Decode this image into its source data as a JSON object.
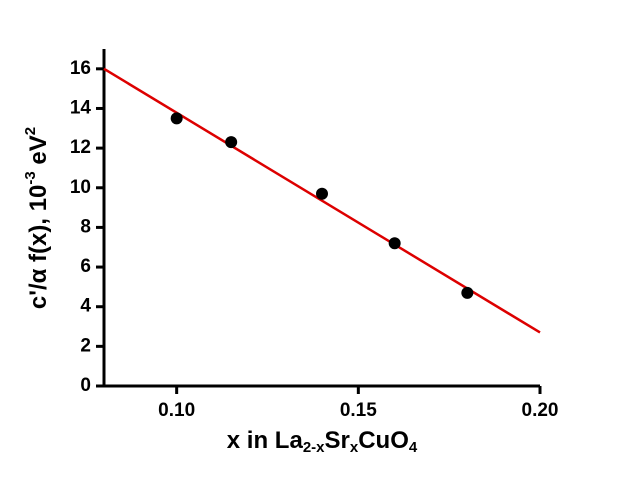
{
  "chart_data": {
    "type": "scatter",
    "x": [
      0.1,
      0.115,
      0.14,
      0.16,
      0.18
    ],
    "values": [
      13.5,
      12.3,
      9.7,
      7.2,
      4.7
    ],
    "color": "#000000",
    "fit": {
      "x": [
        0.08,
        0.2
      ],
      "values": [
        16.0,
        2.7
      ],
      "color": "#dd0000"
    },
    "xlim": [
      0.08,
      0.2
    ],
    "xticks": [
      {
        "value": 0.1,
        "label": "0.10"
      },
      0.15,
      {
        "value": 0.2,
        "label": "0.20"
      }
    ],
    "ylim": [
      0,
      17
    ],
    "yticks": [
      0,
      2,
      4,
      6,
      8,
      10,
      12,
      14,
      16
    ],
    "xlabel": [
      "x in La",
      "2-x",
      "Sr",
      "x",
      "CuO",
      "4"
    ],
    "ylabel": [
      "c'/α f(x), 10",
      "-3",
      " eV",
      "2"
    ]
  }
}
